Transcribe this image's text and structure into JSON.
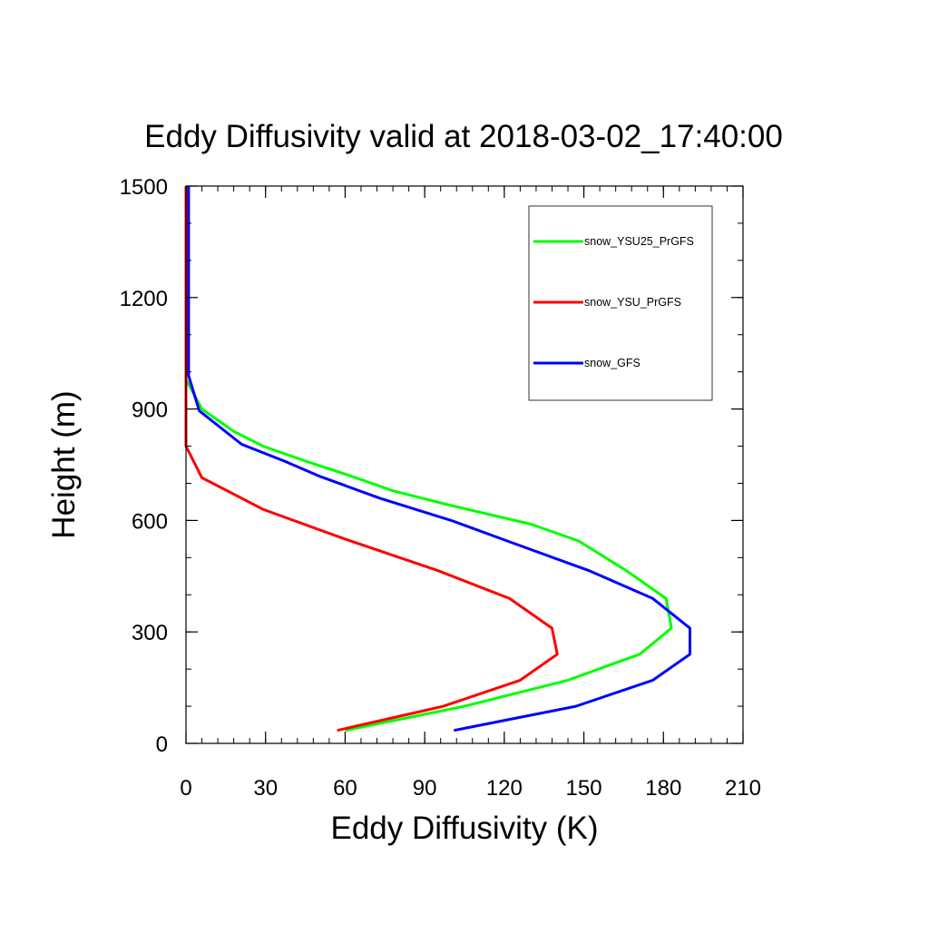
{
  "chart_data": {
    "type": "line",
    "title": "Eddy Diffusivity valid at 2018-03-02_17:40:00",
    "xlabel": "Eddy Diffusivity (K)",
    "ylabel": "Height (m)",
    "xlim": [
      0,
      210
    ],
    "ylim": [
      0,
      1500
    ],
    "xticks": [
      "0",
      "30",
      "60",
      "90",
      "120",
      "150",
      "180",
      "210"
    ],
    "yticks": [
      "0",
      "300",
      "600",
      "900",
      "1200",
      "1500"
    ],
    "grid": false,
    "legend_position": "top-right",
    "series": [
      {
        "name": "snow_YSU25_PrGFS",
        "color": "#00ff00",
        "points": [
          [
            60,
            35
          ],
          [
            105,
            100
          ],
          [
            144,
            170
          ],
          [
            171,
            240
          ],
          [
            183,
            310
          ],
          [
            181,
            390
          ],
          [
            166,
            465
          ],
          [
            148,
            545
          ],
          [
            130,
            590
          ],
          [
            100,
            640
          ],
          [
            78,
            680
          ],
          [
            62,
            720
          ],
          [
            45,
            760
          ],
          [
            29,
            800
          ],
          [
            18,
            840
          ],
          [
            6,
            900
          ],
          [
            0,
            980
          ],
          [
            0.5,
            1050
          ],
          [
            0.5,
            1200
          ],
          [
            0.5,
            1350
          ],
          [
            0.5,
            1500
          ]
        ]
      },
      {
        "name": "snow_YSU_PrGFS",
        "color": "#ff0000",
        "points": [
          [
            57,
            35
          ],
          [
            97,
            100
          ],
          [
            126,
            170
          ],
          [
            140,
            240
          ],
          [
            138,
            310
          ],
          [
            122,
            390
          ],
          [
            95,
            465
          ],
          [
            60,
            550
          ],
          [
            29,
            630
          ],
          [
            6,
            715
          ],
          [
            0,
            800
          ],
          [
            0,
            900
          ],
          [
            0,
            1000
          ],
          [
            0,
            1100
          ],
          [
            0,
            1200
          ],
          [
            0,
            1300
          ],
          [
            0,
            1400
          ],
          [
            0,
            1500
          ]
        ]
      },
      {
        "name": "snow_GFS",
        "color": "#0000ff",
        "points": [
          [
            101,
            35
          ],
          [
            147,
            100
          ],
          [
            176,
            170
          ],
          [
            190,
            240
          ],
          [
            190,
            310
          ],
          [
            176,
            390
          ],
          [
            152,
            465
          ],
          [
            121,
            545
          ],
          [
            100,
            600
          ],
          [
            73,
            660
          ],
          [
            50,
            720
          ],
          [
            37,
            760
          ],
          [
            21,
            805
          ],
          [
            5,
            895
          ],
          [
            1,
            990
          ],
          [
            1,
            1100
          ],
          [
            1,
            1200
          ],
          [
            1,
            1300
          ],
          [
            1,
            1400
          ],
          [
            1,
            1500
          ]
        ]
      }
    ]
  }
}
